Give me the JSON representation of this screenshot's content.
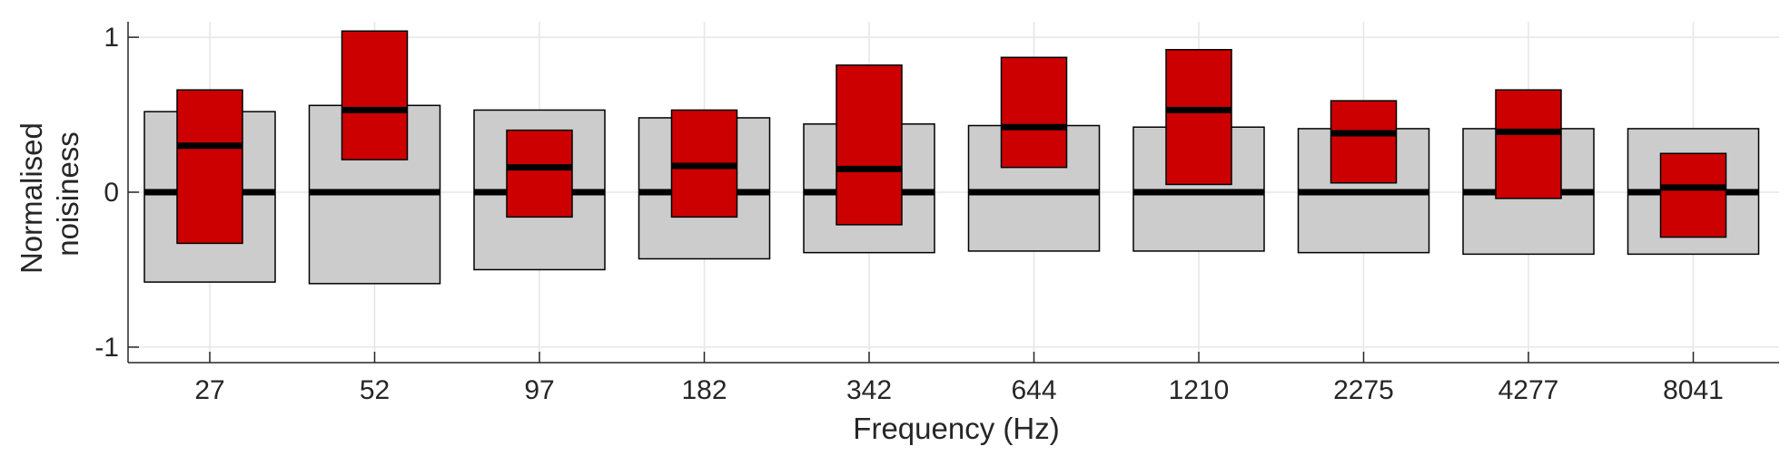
{
  "chart_data": {
    "type": "box",
    "title": "",
    "xlabel": "Frequency (Hz)",
    "ylabel": [
      "Normalised",
      "noisiness"
    ],
    "categories": [
      "27",
      "52",
      "97",
      "182",
      "342",
      "644",
      "1210",
      "2275",
      "4277",
      "8041"
    ],
    "ylim": [
      -1.1,
      1.1
    ],
    "yticks": [
      1,
      0,
      -1
    ],
    "ytick_labels": [
      "1",
      "0",
      "-1"
    ],
    "grid": true,
    "series": [
      {
        "low": [
          -0.58,
          -0.59,
          -0.5,
          -0.43,
          -0.39,
          -0.38,
          -0.38,
          -0.39,
          -0.4,
          -0.4
        ],
        "high": [
          0.52,
          0.56,
          0.53,
          0.48,
          0.44,
          0.43,
          0.42,
          0.41,
          0.41,
          0.41
        ],
        "median": [
          0,
          0,
          0,
          0,
          0,
          0,
          0,
          0,
          0,
          0
        ]
      },
      {
        "low": [
          -0.33,
          0.21,
          -0.16,
          -0.16,
          -0.21,
          0.16,
          0.05,
          0.06,
          -0.04,
          -0.29
        ],
        "high": [
          0.66,
          1.04,
          0.4,
          0.53,
          0.82,
          0.87,
          0.92,
          0.59,
          0.66,
          0.25
        ],
        "median": [
          0.3,
          0.53,
          0.16,
          0.17,
          0.15,
          0.42,
          0.53,
          0.38,
          0.39,
          0.03
        ]
      }
    ],
    "colors": {
      "wide_fill": "#cccccc",
      "narrow_fill": "#cc0000",
      "median": "#000000",
      "box_edge": "#000000",
      "grid": "#e6e6e6",
      "axis": "#262626"
    }
  }
}
